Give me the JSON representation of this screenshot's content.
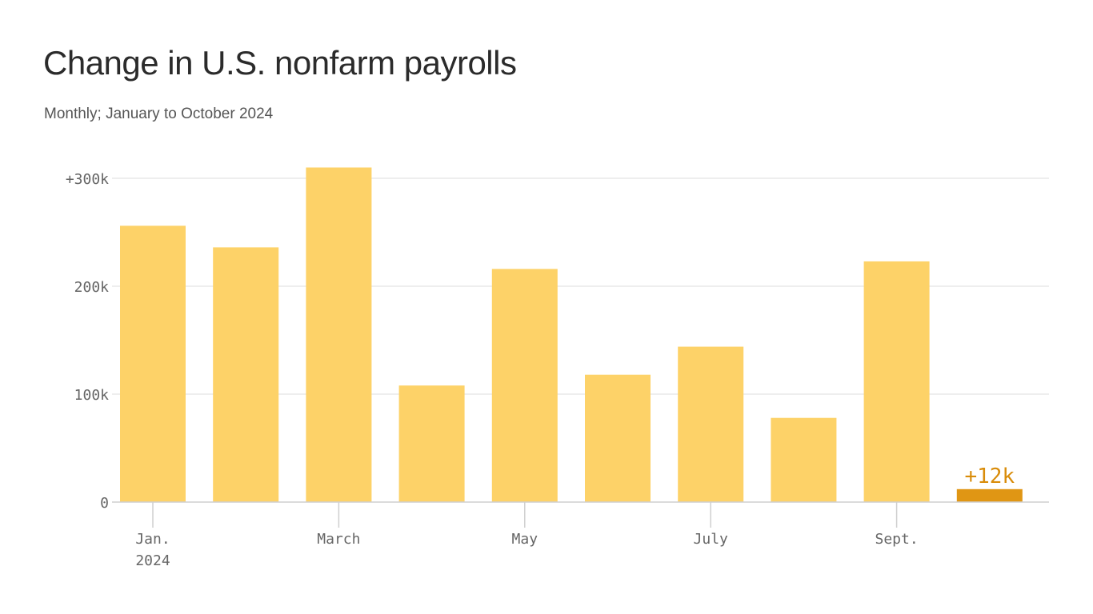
{
  "chart_data": {
    "type": "bar",
    "title": "Change in U.S. nonfarm payrolls",
    "subtitle": "Monthly; January to October 2024",
    "categories": [
      "Jan. 2024",
      "Feb. 2024",
      "March 2024",
      "April 2024",
      "May 2024",
      "June 2024",
      "July 2024",
      "Aug. 2024",
      "Sept. 2024",
      "Oct. 2024"
    ],
    "values": [
      256,
      236,
      310,
      108,
      216,
      118,
      144,
      78,
      223,
      12
    ],
    "value_unit": "thousands of jobs",
    "ylim": [
      0,
      310
    ],
    "y_ticks": [
      {
        "value": 0,
        "label": "0"
      },
      {
        "value": 100,
        "label": "100k"
      },
      {
        "value": 200,
        "label": "200k"
      },
      {
        "value": 300,
        "label": "+300k"
      }
    ],
    "x_ticks": [
      {
        "index": 0,
        "label": "Jan.",
        "sublabel": "2024"
      },
      {
        "index": 2,
        "label": "March",
        "sublabel": ""
      },
      {
        "index": 4,
        "label": "May",
        "sublabel": ""
      },
      {
        "index": 6,
        "label": "July",
        "sublabel": ""
      },
      {
        "index": 8,
        "label": "Sept.",
        "sublabel": ""
      }
    ],
    "highlight": {
      "index": 9,
      "label": "+12k"
    },
    "grid": true,
    "colors": {
      "bar": "#fdd268",
      "highlight": "#e09614",
      "highlight_label": "#d98c0a",
      "grid": "#dedede",
      "axis": "#cfcfcf"
    }
  }
}
